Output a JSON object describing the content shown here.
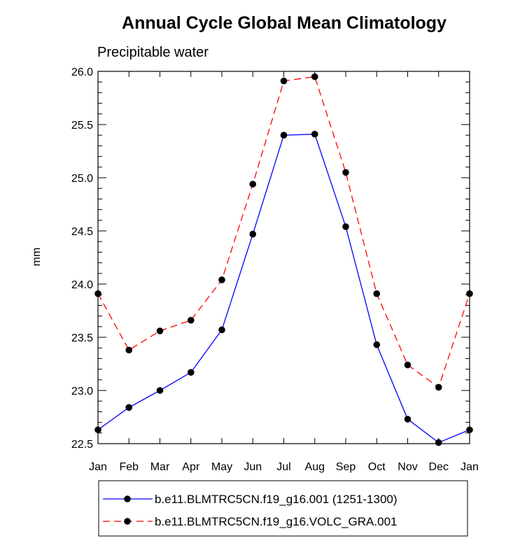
{
  "chart_data": {
    "type": "line",
    "title": "Annual Cycle Global Mean Climatology",
    "subtitle": "Precipitable water",
    "xlabel": "",
    "ylabel": "mm",
    "categories": [
      "Jan",
      "Feb",
      "Mar",
      "Apr",
      "May",
      "Jun",
      "Jul",
      "Aug",
      "Sep",
      "Oct",
      "Nov",
      "Dec",
      "Jan"
    ],
    "ylim": [
      22.5,
      26.0
    ],
    "yticks": [
      "22.5",
      "23.0",
      "23.5",
      "24.0",
      "24.5",
      "25.0",
      "25.5",
      "26.0"
    ],
    "grid": false,
    "legend_position": "bottom",
    "series": [
      {
        "name": "b.e11.BLMTRC5CN.f19_g16.001 (1251-1300)",
        "color": "#0000ff",
        "line_style": "solid",
        "values": [
          22.63,
          22.84,
          23.0,
          23.17,
          23.57,
          24.47,
          25.4,
          25.41,
          24.54,
          23.43,
          22.73,
          22.51,
          22.63
        ]
      },
      {
        "name": "b.e11.BLMTRC5CN.f19_g16.VOLC_GRA.001",
        "color": "#ff0000",
        "line_style": "dashed",
        "values": [
          23.91,
          23.38,
          23.56,
          23.66,
          24.04,
          24.94,
          25.91,
          25.95,
          25.05,
          23.91,
          23.24,
          23.03,
          23.91
        ]
      }
    ]
  }
}
